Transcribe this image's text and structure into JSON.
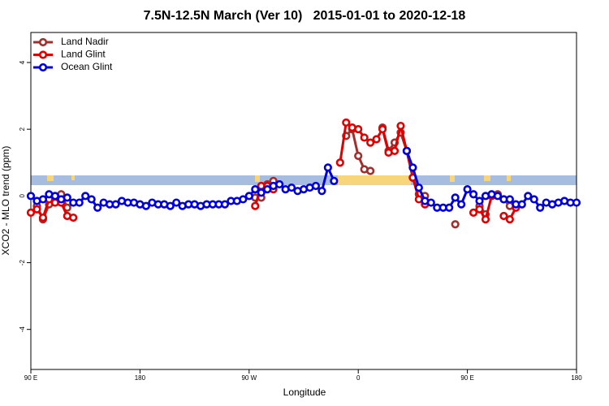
{
  "chart_data": {
    "type": "line",
    "title": "7.5N-12.5N March (Ver 10)   2015-01-01 to 2020-12-18",
    "x_label": "Longitude",
    "y_label": "XCO2 - MLO trend (ppm)",
    "xlim": [
      90,
      540
    ],
    "ylim": [
      -5.2,
      4.9
    ],
    "xticks": [
      {
        "value": 90,
        "label": "90 E"
      },
      180,
      {
        "value": 270,
        "label": "90 W"
      },
      {
        "value": 360,
        "label": "0"
      },
      {
        "value": 450,
        "label": "90 E"
      },
      {
        "value": 540,
        "label": "180"
      }
    ],
    "yticks": [
      -4,
      -2,
      0,
      2,
      4
    ],
    "legend": "top-left",
    "x": [
      90,
      95,
      100,
      105,
      110,
      115,
      120,
      125,
      130,
      135,
      140,
      145,
      150,
      155,
      160,
      165,
      170,
      175,
      180,
      185,
      190,
      195,
      200,
      205,
      210,
      215,
      220,
      225,
      230,
      235,
      240,
      245,
      250,
      255,
      260,
      265,
      270,
      275,
      280,
      285,
      290,
      295,
      300,
      305,
      310,
      315,
      320,
      325,
      330,
      335,
      340,
      345,
      350,
      355,
      360,
      365,
      370,
      375,
      380,
      385,
      390,
      395,
      400,
      405,
      410,
      415,
      420,
      425,
      430,
      435,
      440,
      445,
      450,
      455,
      460,
      465,
      470,
      475,
      480,
      485,
      490,
      495,
      500,
      505,
      510,
      515,
      520,
      525,
      530,
      535,
      540
    ],
    "series": [
      {
        "name": "Land Nadir",
        "color": "#a0302e",
        "values": [
          null,
          -0.3,
          -0.7,
          -0.25,
          -0.1,
          0.05,
          -0.35,
          null,
          null,
          null,
          null,
          null,
          null,
          null,
          null,
          null,
          null,
          null,
          null,
          null,
          null,
          null,
          null,
          null,
          null,
          null,
          null,
          null,
          null,
          null,
          null,
          null,
          null,
          null,
          null,
          null,
          null,
          -0.05,
          -0.05,
          0.35,
          0.45,
          null,
          null,
          null,
          null,
          null,
          null,
          null,
          null,
          null,
          null,
          null,
          1.8,
          2.0,
          1.2,
          0.8,
          0.75,
          null,
          2.05,
          1.35,
          1.6,
          1.9,
          1.35,
          0.55,
          0.05,
          0.0,
          null,
          null,
          null,
          null,
          -0.85,
          null,
          null,
          null,
          -0.3,
          -0.55,
          null,
          0.05,
          -0.1,
          -0.3,
          null,
          null,
          null,
          null,
          null,
          null,
          null,
          null,
          null,
          null,
          null
        ]
      },
      {
        "name": "Land Glint",
        "color": "#e00000",
        "values": [
          -0.5,
          -0.4,
          -0.65,
          -0.1,
          -0.2,
          -0.2,
          -0.6,
          -0.65,
          null,
          null,
          null,
          null,
          null,
          null,
          null,
          null,
          null,
          null,
          null,
          null,
          null,
          null,
          null,
          null,
          null,
          null,
          null,
          null,
          null,
          null,
          null,
          null,
          null,
          null,
          null,
          null,
          null,
          -0.3,
          0.3,
          0.3,
          0.2,
          null,
          null,
          null,
          null,
          null,
          null,
          null,
          null,
          null,
          null,
          1.0,
          2.2,
          2.05,
          2.0,
          1.75,
          1.6,
          1.7,
          2.0,
          1.3,
          1.35,
          2.1,
          1.35,
          0.55,
          -0.1,
          -0.25,
          null,
          null,
          null,
          null,
          null,
          null,
          null,
          -0.5,
          -0.4,
          -0.7,
          0,
          null,
          -0.6,
          -0.7,
          -0.35,
          null,
          null,
          null,
          null,
          null,
          null,
          null,
          null,
          null,
          null
        ]
      },
      {
        "name": "Ocean Glint",
        "color": "#0000e0",
        "values": [
          0,
          -0.15,
          -0.1,
          0.05,
          0,
          -0.1,
          -0.05,
          -0.2,
          -0.2,
          0,
          -0.1,
          -0.35,
          -0.2,
          -0.25,
          -0.25,
          -0.15,
          -0.2,
          -0.2,
          -0.25,
          -0.3,
          -0.2,
          -0.25,
          -0.25,
          -0.3,
          -0.2,
          -0.3,
          -0.25,
          -0.25,
          -0.3,
          -0.25,
          -0.25,
          -0.25,
          -0.25,
          -0.15,
          -0.15,
          -0.1,
          0,
          0.2,
          0.1,
          0.2,
          0.3,
          0.35,
          0.2,
          0.25,
          0.15,
          0.2,
          0.25,
          0.3,
          0.15,
          0.85,
          0.45,
          null,
          null,
          null,
          null,
          null,
          null,
          null,
          null,
          null,
          null,
          null,
          1.35,
          0.85,
          0.25,
          -0.15,
          -0.2,
          -0.35,
          -0.35,
          -0.35,
          -0.05,
          -0.25,
          0.2,
          0.05,
          -0.15,
          0,
          0.05,
          0,
          -0.1,
          -0.1,
          -0.25,
          -0.25,
          0,
          -0.1,
          -0.35,
          -0.2,
          -0.25,
          -0.2,
          -0.15,
          -0.2,
          -0.2
        ]
      }
    ]
  }
}
